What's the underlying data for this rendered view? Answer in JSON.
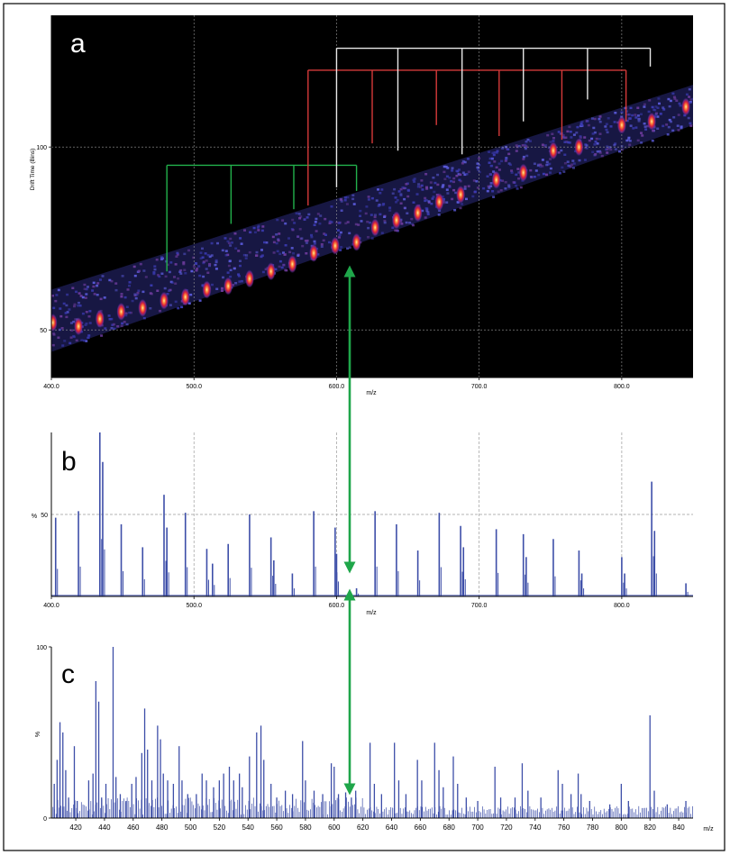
{
  "figure": {
    "panel_labels": [
      "a",
      "b",
      "c"
    ],
    "colors": {
      "frame": "#000000",
      "spectrum": "#3d4ea8",
      "arrow": "#1fa64a",
      "series_green": "#22b14c",
      "series_red": "#d63a3a",
      "series_white": "#e8e8e8",
      "grid": "#9a9a9a"
    }
  },
  "chart_data": [
    {
      "id": "a",
      "type": "heatmap",
      "title": "",
      "xlabel": "m/z",
      "ylabel": "Drift Time (Bins)",
      "xlim": [
        400,
        850
      ],
      "ylim": [
        37,
        136
      ],
      "x_ticks": [
        400,
        500,
        600,
        700,
        800
      ],
      "x_tick_labels": [
        "400.0",
        "500.0",
        "600.0",
        "700.0",
        "800.0"
      ],
      "y_ticks": [
        50,
        100
      ],
      "y_tick_labels": [
        "50",
        "100"
      ],
      "grid": true,
      "background": "#000000",
      "spots": [
        {
          "mz": 401,
          "dt": 52
        },
        {
          "mz": 419,
          "dt": 51
        },
        {
          "mz": 434,
          "dt": 53
        },
        {
          "mz": 449,
          "dt": 55
        },
        {
          "mz": 464,
          "dt": 56
        },
        {
          "mz": 479,
          "dt": 58
        },
        {
          "mz": 494,
          "dt": 59
        },
        {
          "mz": 509,
          "dt": 61
        },
        {
          "mz": 524,
          "dt": 62
        },
        {
          "mz": 539,
          "dt": 64
        },
        {
          "mz": 554,
          "dt": 66
        },
        {
          "mz": 569,
          "dt": 68
        },
        {
          "mz": 584,
          "dt": 71
        },
        {
          "mz": 599,
          "dt": 73
        },
        {
          "mz": 614,
          "dt": 74
        },
        {
          "mz": 627,
          "dt": 78
        },
        {
          "mz": 642,
          "dt": 80
        },
        {
          "mz": 657,
          "dt": 82
        },
        {
          "mz": 672,
          "dt": 85
        },
        {
          "mz": 687,
          "dt": 87
        },
        {
          "mz": 712,
          "dt": 91
        },
        {
          "mz": 731,
          "dt": 93
        },
        {
          "mz": 752,
          "dt": 99
        },
        {
          "mz": 770,
          "dt": 100
        },
        {
          "mz": 800,
          "dt": 106
        },
        {
          "mz": 821,
          "dt": 107
        },
        {
          "mz": 845,
          "dt": 111
        }
      ],
      "band": {
        "lower": [
          [
            400,
            44
          ],
          [
            850,
            106
          ]
        ],
        "upper": [
          [
            400,
            61
          ],
          [
            850,
            117
          ]
        ]
      },
      "series": [
        {
          "name": "",
          "color": "#22b14c",
          "bar_level": 95,
          "drops": [
            [
              481,
              66
            ],
            [
              526,
              79
            ],
            [
              570,
              83
            ],
            [
              614,
              88
            ]
          ]
        },
        {
          "name": "",
          "color": "#d63a3a",
          "bar_level": 121,
          "drops": [
            [
              580,
              84
            ],
            [
              625,
              101
            ],
            [
              670,
              106
            ],
            [
              714,
              103
            ],
            [
              758,
              102
            ],
            [
              803,
              107
            ]
          ]
        },
        {
          "name": "",
          "color": "#e8e8e8",
          "bar_level": 127,
          "drops": [
            [
              600,
              89
            ],
            [
              643,
              99
            ],
            [
              688,
              98
            ],
            [
              731,
              107
            ],
            [
              776,
              113
            ],
            [
              820,
              122
            ]
          ]
        }
      ]
    },
    {
      "id": "b",
      "type": "bar",
      "title": "",
      "xlabel": "m/z",
      "ylabel": "%",
      "xlim": [
        400,
        850
      ],
      "ylim": [
        0,
        100
      ],
      "x_ticks": [
        400,
        500,
        600,
        700,
        800
      ],
      "x_tick_labels": [
        "400.0",
        "500.0",
        "600.0",
        "700.0",
        "800.0"
      ],
      "y_ticks": [
        50
      ],
      "y_tick_labels": [
        "50"
      ],
      "grid": true,
      "peaks": [
        [
          403,
          48
        ],
        [
          419,
          52
        ],
        [
          434,
          100
        ],
        [
          436,
          82
        ],
        [
          449,
          44
        ],
        [
          464,
          30
        ],
        [
          479,
          62
        ],
        [
          481,
          42
        ],
        [
          494,
          51
        ],
        [
          509,
          29
        ],
        [
          513,
          20
        ],
        [
          524,
          32
        ],
        [
          539,
          50
        ],
        [
          554,
          36
        ],
        [
          556,
          22
        ],
        [
          569,
          14
        ],
        [
          584,
          52
        ],
        [
          599,
          42
        ],
        [
          600,
          26
        ],
        [
          614,
          5
        ],
        [
          627,
          52
        ],
        [
          642,
          44
        ],
        [
          657,
          28
        ],
        [
          672,
          51
        ],
        [
          687,
          43
        ],
        [
          689,
          30
        ],
        [
          712,
          41
        ],
        [
          731,
          38
        ],
        [
          733,
          24
        ],
        [
          752,
          35
        ],
        [
          770,
          28
        ],
        [
          772,
          14
        ],
        [
          800,
          24
        ],
        [
          802,
          14
        ],
        [
          821,
          70
        ],
        [
          823,
          40
        ],
        [
          845,
          8
        ]
      ]
    },
    {
      "id": "c",
      "type": "bar",
      "title": "",
      "xlabel": "m/z",
      "ylabel": "%",
      "xlim": [
        403,
        850
      ],
      "ylim": [
        0,
        100
      ],
      "x_ticks": [
        420,
        440,
        460,
        480,
        500,
        520,
        540,
        560,
        580,
        600,
        620,
        640,
        660,
        680,
        700,
        720,
        740,
        760,
        780,
        800,
        820,
        840
      ],
      "x_tick_labels": [
        "420",
        "440",
        "460",
        "480",
        "500",
        "520",
        "540",
        "560",
        "580",
        "600",
        "620",
        "640",
        "660",
        "680",
        "700",
        "720",
        "740",
        "760",
        "780",
        "800",
        "820",
        "840"
      ],
      "y_ticks": [
        0,
        100
      ],
      "y_tick_labels": [
        "0",
        "100"
      ],
      "grid": false,
      "peaks": [
        [
          405,
          20
        ],
        [
          407,
          34
        ],
        [
          409,
          56
        ],
        [
          411,
          50
        ],
        [
          413,
          28
        ],
        [
          415,
          12
        ],
        [
          419,
          42
        ],
        [
          421,
          10
        ],
        [
          429,
          22
        ],
        [
          432,
          26
        ],
        [
          434,
          80
        ],
        [
          436,
          68
        ],
        [
          438,
          12
        ],
        [
          441,
          20
        ],
        [
          446,
          100
        ],
        [
          448,
          24
        ],
        [
          451,
          14
        ],
        [
          455,
          10
        ],
        [
          459,
          20
        ],
        [
          462,
          24
        ],
        [
          466,
          38
        ],
        [
          468,
          64
        ],
        [
          470,
          40
        ],
        [
          473,
          22
        ],
        [
          477,
          54
        ],
        [
          479,
          46
        ],
        [
          481,
          26
        ],
        [
          484,
          22
        ],
        [
          488,
          20
        ],
        [
          492,
          42
        ],
        [
          494,
          22
        ],
        [
          498,
          14
        ],
        [
          504,
          14
        ],
        [
          508,
          26
        ],
        [
          511,
          22
        ],
        [
          516,
          18
        ],
        [
          520,
          22
        ],
        [
          523,
          26
        ],
        [
          527,
          30
        ],
        [
          530,
          22
        ],
        [
          534,
          26
        ],
        [
          536,
          18
        ],
        [
          541,
          36
        ],
        [
          546,
          50
        ],
        [
          549,
          54
        ],
        [
          551,
          34
        ],
        [
          556,
          20
        ],
        [
          560,
          12
        ],
        [
          566,
          16
        ],
        [
          571,
          14
        ],
        [
          578,
          45
        ],
        [
          580,
          22
        ],
        [
          586,
          16
        ],
        [
          592,
          14
        ],
        [
          598,
          32
        ],
        [
          600,
          30
        ],
        [
          603,
          14
        ],
        [
          608,
          15
        ],
        [
          612,
          12
        ],
        [
          615,
          16
        ],
        [
          625,
          44
        ],
        [
          628,
          20
        ],
        [
          633,
          14
        ],
        [
          642,
          44
        ],
        [
          645,
          22
        ],
        [
          650,
          14
        ],
        [
          658,
          34
        ],
        [
          661,
          22
        ],
        [
          670,
          44
        ],
        [
          673,
          28
        ],
        [
          676,
          18
        ],
        [
          683,
          36
        ],
        [
          686,
          20
        ],
        [
          692,
          12
        ],
        [
          700,
          10
        ],
        [
          712,
          30
        ],
        [
          716,
          12
        ],
        [
          726,
          12
        ],
        [
          731,
          32
        ],
        [
          735,
          16
        ],
        [
          744,
          12
        ],
        [
          756,
          28
        ],
        [
          759,
          20
        ],
        [
          765,
          14
        ],
        [
          770,
          26
        ],
        [
          772,
          14
        ],
        [
          778,
          10
        ],
        [
          792,
          8
        ],
        [
          800,
          20
        ],
        [
          805,
          10
        ],
        [
          820,
          60
        ],
        [
          823,
          16
        ],
        [
          832,
          8
        ],
        [
          845,
          10
        ]
      ]
    }
  ]
}
